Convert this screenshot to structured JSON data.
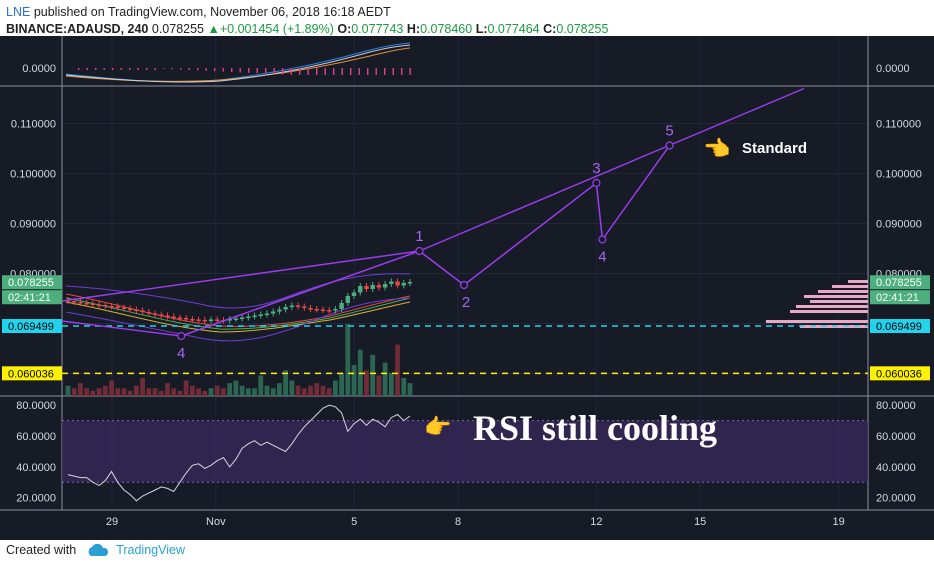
{
  "header": {
    "brand": "LNE",
    "published": "published on TradingView.com, November 06, 2018 16:18 AEDT",
    "symbol": "BINANCE:ADAUSD, 240",
    "last": "0.078255",
    "change": "+0.001454 (+1.89%)",
    "o_label": "O:",
    "o": "0.077743",
    "h_label": "H:",
    "h": "0.078460",
    "l_label": "L:",
    "l": "0.077464",
    "c_label": "C:",
    "c": "0.078255"
  },
  "footer": {
    "created_with": "Created with",
    "tv": "TradingView"
  },
  "chart_data": {
    "type": "line",
    "title": "",
    "x_ticks": [
      "29",
      "Nov",
      "5",
      "8",
      "12",
      "15",
      "19"
    ],
    "price_axis": {
      "ticks": [
        "0.110000",
        "0.100000",
        "0.090000",
        "0.080000",
        "0.070000",
        "0.060000"
      ],
      "ylim": [
        0.0555,
        0.1175
      ]
    },
    "price_labels": [
      {
        "value": "0.078255",
        "color": "#4caf7d"
      },
      {
        "value": "02:41:21",
        "color": "#4caf7d"
      },
      {
        "value": "0.069499",
        "color": "#22d3ee"
      },
      {
        "value": "0.060036",
        "color": "#fff200"
      }
    ],
    "levels": [
      {
        "name": "cyan-line",
        "value": 0.069499,
        "color": "#22d3ee"
      },
      {
        "name": "yellow-line",
        "value": 0.060036,
        "color": "#fff200"
      }
    ],
    "top_panel": {
      "label": "0.0000"
    },
    "wave": {
      "label": "Standard",
      "points": [
        {
          "label": "4",
          "t": "Oct 31",
          "price": 0.0675
        },
        {
          "label": "1",
          "t": "Nov 7",
          "price": 0.0845
        },
        {
          "label": "2",
          "t": "Nov 8",
          "price": 0.0777
        },
        {
          "label": "3",
          "t": "Nov 12",
          "price": 0.0981
        },
        {
          "label": "4",
          "t": "Nov 12",
          "price": 0.0868
        },
        {
          "label": "5",
          "t": "Nov 14",
          "price": 0.1056
        }
      ],
      "upper_trend_end": {
        "t": "Nov 18",
        "price": 0.117
      }
    },
    "candles_close": [
      0.0745,
      0.0743,
      0.0741,
      0.074,
      0.0738,
      0.0737,
      0.0735,
      0.0734,
      0.0732,
      0.073,
      0.0728,
      0.0726,
      0.0723,
      0.072,
      0.0718,
      0.0716,
      0.0714,
      0.0712,
      0.0711,
      0.0709,
      0.0708,
      0.0707,
      0.0706,
      0.0708,
      0.0707,
      0.0706,
      0.0709,
      0.071,
      0.0712,
      0.0714,
      0.0716,
      0.0718,
      0.072,
      0.0724,
      0.0728,
      0.0733,
      0.0736,
      0.0734,
      0.0731,
      0.0729,
      0.0728,
      0.0727,
      0.0726,
      0.0729,
      0.0741,
      0.0755,
      0.0762,
      0.0775,
      0.0769,
      0.0777,
      0.0772,
      0.0779,
      0.0784,
      0.0776,
      0.0781,
      0.0783
    ],
    "volume": [
      4,
      3,
      5,
      3,
      2,
      3,
      4,
      6,
      3,
      3,
      2,
      4,
      7,
      3,
      3,
      2,
      5,
      3,
      2,
      6,
      4,
      3,
      2,
      3,
      4,
      3,
      5,
      6,
      4,
      3,
      3,
      8,
      4,
      3,
      5,
      10,
      6,
      4,
      3,
      4,
      5,
      4,
      3,
      6,
      9,
      28,
      12,
      18,
      10,
      16,
      8,
      13,
      9,
      20,
      7,
      5
    ],
    "rsi": {
      "ticks": [
        "80.0000",
        "60.0000",
        "40.0000",
        "20.0000"
      ],
      "ylim": [
        12,
        86
      ],
      "bands": [
        70,
        30
      ],
      "values": [
        35,
        34,
        33,
        33,
        30,
        28,
        31,
        37,
        30,
        25,
        22,
        18,
        21,
        23,
        25,
        27,
        26,
        24,
        30,
        36,
        41,
        42,
        39,
        41,
        44,
        46,
        40,
        45,
        52,
        55,
        57,
        54,
        56,
        54,
        52,
        50,
        55,
        61,
        66,
        70,
        74,
        78,
        80,
        79,
        75,
        63,
        68,
        71,
        67,
        71,
        69,
        66,
        72,
        74,
        70,
        73
      ],
      "annotation": "RSI still cooling"
    }
  }
}
